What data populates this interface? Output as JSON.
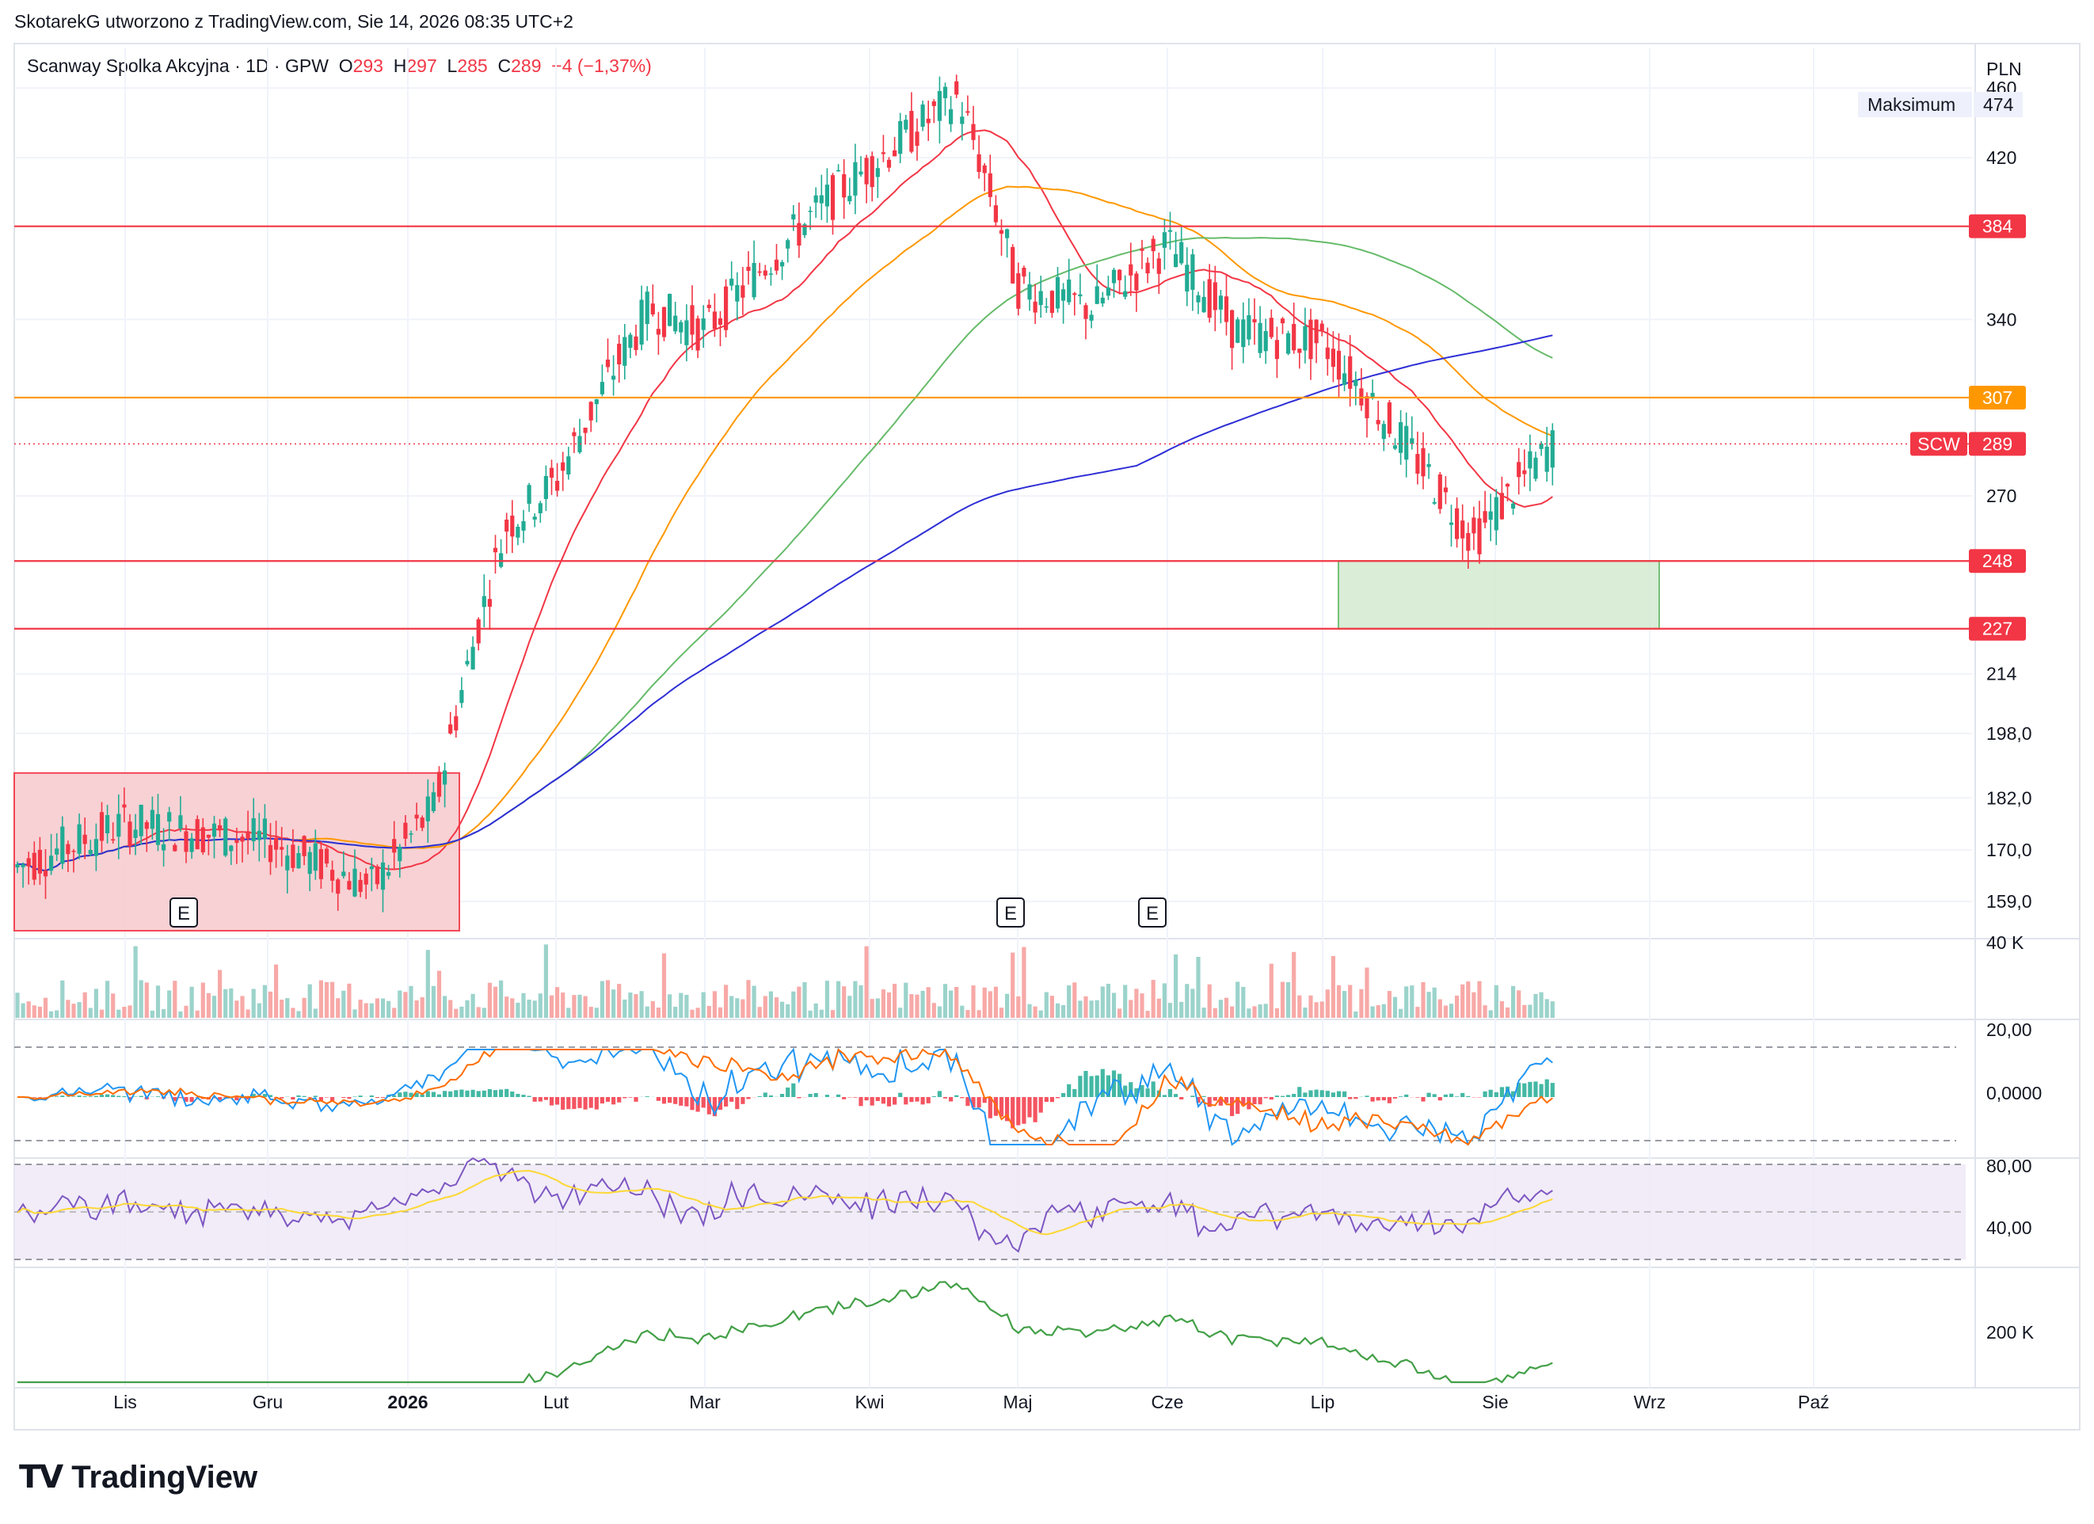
{
  "caption": "SkotarekG utworzono z TradingView.com, Sie 14, 2026 08:35 UTC+2",
  "brand": "TradingView",
  "colors": {
    "up": "#22ab94",
    "down": "#f23645",
    "vol_up": "#9bd3cb",
    "vol_down": "#f7a9a7",
    "ma20": "#f23645",
    "ma50": "#ff9800",
    "ma100": "#66bb6a",
    "ma200": "#2f2fd6",
    "resistance": "#f23645",
    "orange_level": "#ff9800",
    "red_zone": "#f8cdd0",
    "green_zone": "#d5ecd3",
    "macd": "#2196f3",
    "signal": "#ff6d00",
    "rsi": "#7e57c2",
    "rsi_ma": "#fdd835",
    "obv": "#43a047"
  },
  "legend": {
    "name": "Scanway Spolka Akcyjna · 1D · GPW",
    "o_label": "O",
    "o": "293",
    "h_label": "H",
    "h": "297",
    "l_label": "L",
    "l": "285",
    "c_label": "C",
    "c": "289",
    "change": "−4 (−1,37%)"
  },
  "currency": "PLN",
  "max_label": "Maksimum",
  "max_value": "474",
  "earnings_marker": "E",
  "chart_data": {
    "type": "candlestick",
    "price_scale": "log",
    "ylim": [
      153,
      485
    ],
    "y_ticks": [
      "460",
      "420",
      "340",
      "270",
      "214",
      "198,0",
      "182,0",
      "170,0",
      "159,0"
    ],
    "x_ticks": [
      "Lis",
      "Gru",
      "2026",
      "Lut",
      "Mar",
      "Kwi",
      "Maj",
      "Cze",
      "Lip",
      "Sie",
      "Wrz",
      "Paź"
    ],
    "last_price_label": "SCW",
    "last_price": "289",
    "levels": [
      {
        "value": "384",
        "kind": "resistance"
      },
      {
        "value": "307",
        "kind": "orange"
      },
      {
        "value": "248",
        "kind": "support"
      },
      {
        "value": "227",
        "kind": "support"
      }
    ],
    "zones": [
      {
        "kind": "red",
        "from": "Oct 2025",
        "to": "Jan 2026",
        "low": 153,
        "high": 188
      },
      {
        "kind": "green",
        "from": "Jul 2026",
        "to": "Aug 2026",
        "low": 227,
        "high": 248
      }
    ],
    "earnings": [
      "Nov 2025",
      "Apr 2026",
      "May 2026"
    ],
    "candle_anchors": {
      "dates": [
        "Oct 2025",
        "Nov 2025",
        "Dec 2025",
        "Jan 2026",
        "Jan 2026b",
        "Feb 2026",
        "Feb 2026b",
        "Mar 2026",
        "Mar 2026b",
        "Apr 2026",
        "Apr 2026b",
        "May 2026",
        "May 2026b",
        "Jun 2026",
        "Jun 2026b",
        "Jul 2026",
        "Jul 2026b",
        "Aug 2026"
      ],
      "closes": [
        166,
        176,
        172,
        162,
        180,
        260,
        275,
        345,
        335,
        395,
        455,
        355,
        345,
        375,
        335,
        330,
        255,
        290
      ]
    },
    "volume_axis": [
      "40 K"
    ],
    "macd_axis": [
      "20,00",
      "0,0000"
    ],
    "rsi_axis": [
      "80,00",
      "40,00"
    ],
    "obv_axis": [
      "200 K"
    ]
  }
}
